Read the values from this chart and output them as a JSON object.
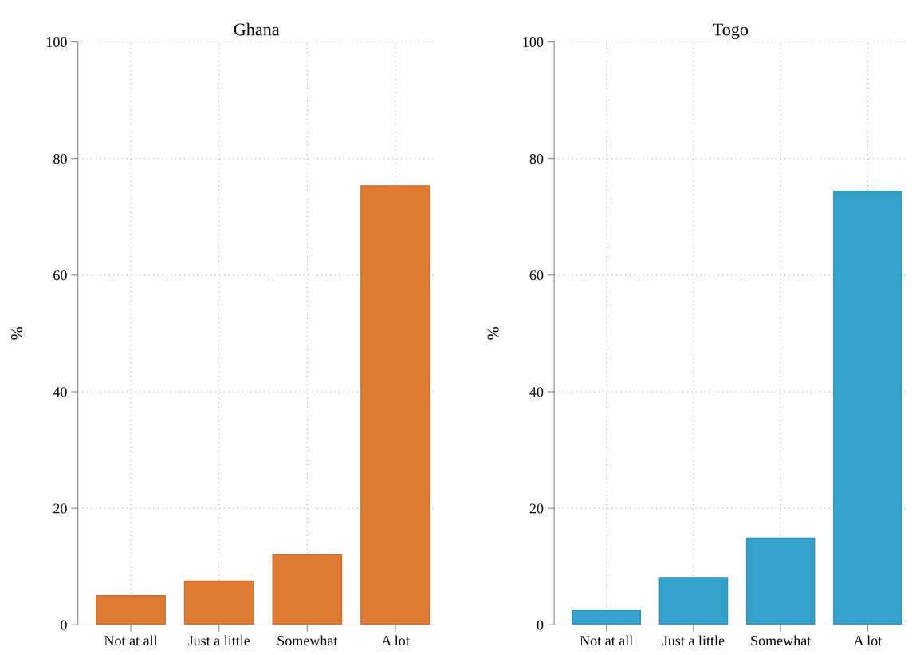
{
  "chart_data": [
    {
      "type": "bar",
      "title": "Ghana",
      "ylabel": "%",
      "categories": [
        "Not at all",
        "Just a little",
        "Somewhat",
        "A lot"
      ],
      "values": [
        5,
        7.5,
        12,
        75.3
      ],
      "color": "#e07b34",
      "ylim": [
        0,
        100
      ],
      "yticks": [
        0,
        20,
        40,
        60,
        80,
        100
      ],
      "grid": true
    },
    {
      "type": "bar",
      "title": "Togo",
      "ylabel": "%",
      "categories": [
        "Not at all",
        "Just a little",
        "Somewhat",
        "A lot"
      ],
      "values": [
        2.5,
        8.1,
        14.9,
        74.4
      ],
      "color": "#35a0ca",
      "ylim": [
        0,
        100
      ],
      "yticks": [
        0,
        20,
        40,
        60,
        80,
        100
      ],
      "grid": true
    }
  ]
}
